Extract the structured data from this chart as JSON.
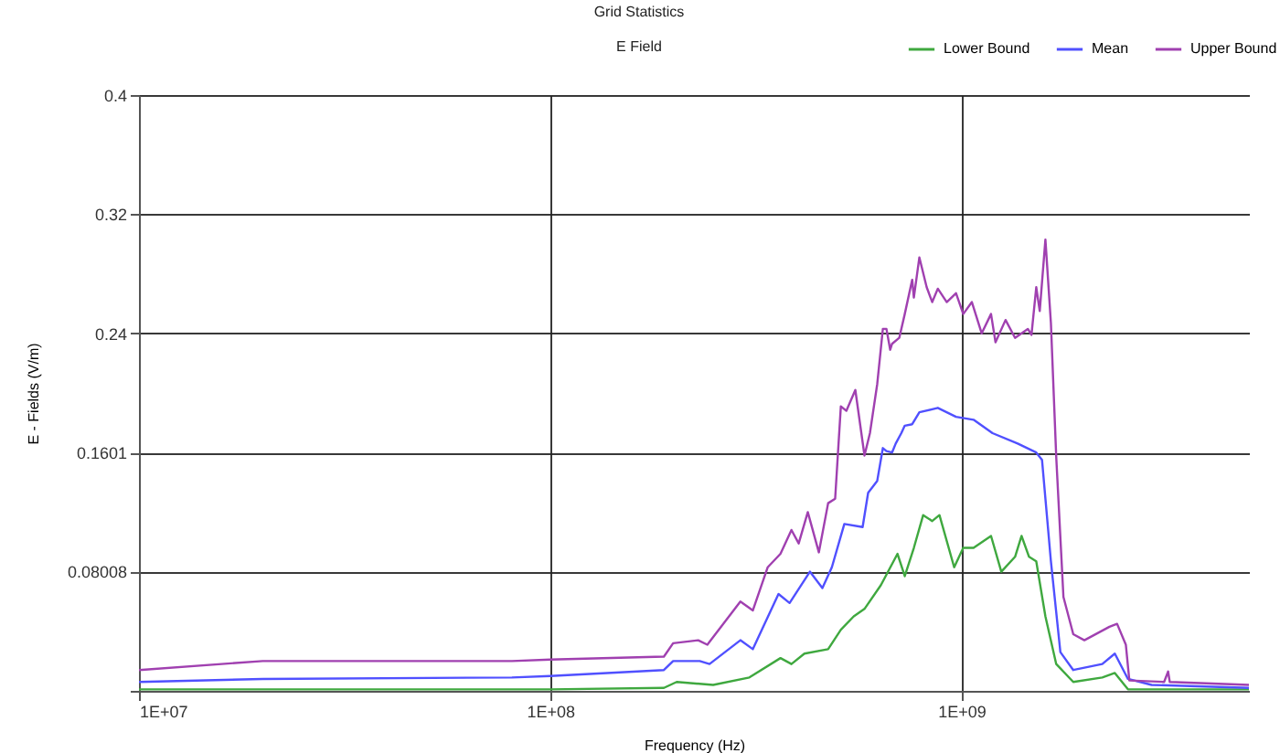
{
  "chart_data": {
    "type": "line",
    "title": "Grid Statistics",
    "subtitle": "E Field",
    "xlabel": "Frequency (Hz)",
    "ylabel": "E - Fields (V/m)",
    "log": "x",
    "grid": true,
    "legend": "top right",
    "marker": "none",
    "line_style": "solid",
    "xlim": [
      10000000,
      5000000000
    ],
    "xticks": [
      {
        "value": 10000000,
        "label": "1E+07"
      },
      {
        "value": 100000000,
        "label": "1E+08"
      },
      {
        "value": 1000000000,
        "label": "1E+09"
      }
    ],
    "ylim": [
      0,
      0.4
    ],
    "yticks": [
      {
        "value": 0,
        "label": null
      },
      0.08008,
      0.1601,
      0.24,
      0.32,
      0.4
    ],
    "series": [
      {
        "name": "Lower Bound",
        "color": "#3fa83f",
        "x": [
          10000000,
          100000000,
          189000000,
          203000000,
          249000000,
          305000000,
          363000000,
          386000000,
          415000000,
          474000000,
          509000000,
          547000000,
          581000000,
          637000000,
          699000000,
          728000000,
          766000000,
          807000000,
          849000000,
          884000000,
          960000000,
          1010000000,
          1070000000,
          1180000000,
          1250000000,
          1350000000,
          1400000000,
          1460000000,
          1520000000,
          1600000000,
          1700000000,
          1870000000,
          2200000000,
          2360000000,
          2540000000,
          5000000000
        ],
        "values": [
          0.001,
          0.001,
          0.002,
          0.006,
          0.004,
          0.009,
          0.022,
          0.018,
          0.025,
          0.028,
          0.041,
          0.05,
          0.055,
          0.071,
          0.092,
          0.077,
          0.096,
          0.118,
          0.114,
          0.118,
          0.083,
          0.096,
          0.096,
          0.104,
          0.08,
          0.09,
          0.104,
          0.09,
          0.087,
          0.05,
          0.018,
          0.006,
          0.009,
          0.012,
          0.001,
          0.001
        ]
      },
      {
        "name": "Mean",
        "color": "#5050ff",
        "x": [
          10000000,
          20000000,
          80700000,
          100000000,
          189000000,
          199000000,
          231000000,
          244000000,
          290000000,
          311000000,
          359000000,
          382000000,
          428000000,
          459000000,
          484000000,
          519000000,
          575000000,
          593000000,
          624000000,
          644000000,
          657000000,
          678000000,
          692000000,
          714000000,
          728000000,
          759000000,
          790000000,
          876000000,
          970000000,
          1070000000,
          1190000000,
          1370000000,
          1520000000,
          1570000000,
          1650000000,
          1740000000,
          1870000000,
          2200000000,
          2360000000,
          2540000000,
          2900000000,
          5000000000
        ],
        "values": [
          0.006,
          0.008,
          0.009,
          0.01,
          0.014,
          0.02,
          0.02,
          0.018,
          0.034,
          0.028,
          0.065,
          0.059,
          0.08,
          0.069,
          0.083,
          0.112,
          0.11,
          0.133,
          0.141,
          0.163,
          0.161,
          0.16,
          0.166,
          0.173,
          0.178,
          0.179,
          0.187,
          0.19,
          0.184,
          0.182,
          0.173,
          0.166,
          0.16,
          0.155,
          0.087,
          0.026,
          0.014,
          0.018,
          0.025,
          0.008,
          0.004,
          0.002
        ]
      },
      {
        "name": "Upper Bound",
        "color": "#a040b0",
        "x": [
          10000000,
          20000000,
          80700000,
          100000000,
          189000000,
          199000000,
          229000000,
          241000000,
          290000000,
          311000000,
          338000000,
          363000000,
          386000000,
          402000000,
          423000000,
          450000000,
          474000000,
          493000000,
          509000000,
          525000000,
          552000000,
          581000000,
          599000000,
          624000000,
          644000000,
          657000000,
          671000000,
          678000000,
          706000000,
          728000000,
          759000000,
          766000000,
          790000000,
          823000000,
          849000000,
          876000000,
          921000000,
          970000000,
          1010000000,
          1060000000,
          1120000000,
          1180000000,
          1210000000,
          1280000000,
          1350000000,
          1450000000,
          1480000000,
          1520000000,
          1550000000,
          1600000000,
          1650000000,
          1700000000,
          1770000000,
          1870000000,
          1990000000,
          2290000000,
          2390000000,
          2510000000,
          2560000000,
          3110000000,
          3180000000,
          3210000000,
          5000000000
        ],
        "values": [
          0.014,
          0.02,
          0.02,
          0.021,
          0.023,
          0.032,
          0.034,
          0.031,
          0.06,
          0.054,
          0.083,
          0.092,
          0.108,
          0.099,
          0.12,
          0.093,
          0.126,
          0.129,
          0.191,
          0.188,
          0.202,
          0.158,
          0.173,
          0.206,
          0.243,
          0.243,
          0.229,
          0.233,
          0.237,
          0.253,
          0.276,
          0.264,
          0.291,
          0.271,
          0.261,
          0.27,
          0.261,
          0.267,
          0.253,
          0.261,
          0.24,
          0.253,
          0.234,
          0.249,
          0.237,
          0.243,
          0.239,
          0.271,
          0.255,
          0.303,
          0.247,
          0.157,
          0.063,
          0.038,
          0.034,
          0.043,
          0.045,
          0.031,
          0.007,
          0.006,
          0.013,
          0.006,
          0.004
        ]
      }
    ]
  }
}
